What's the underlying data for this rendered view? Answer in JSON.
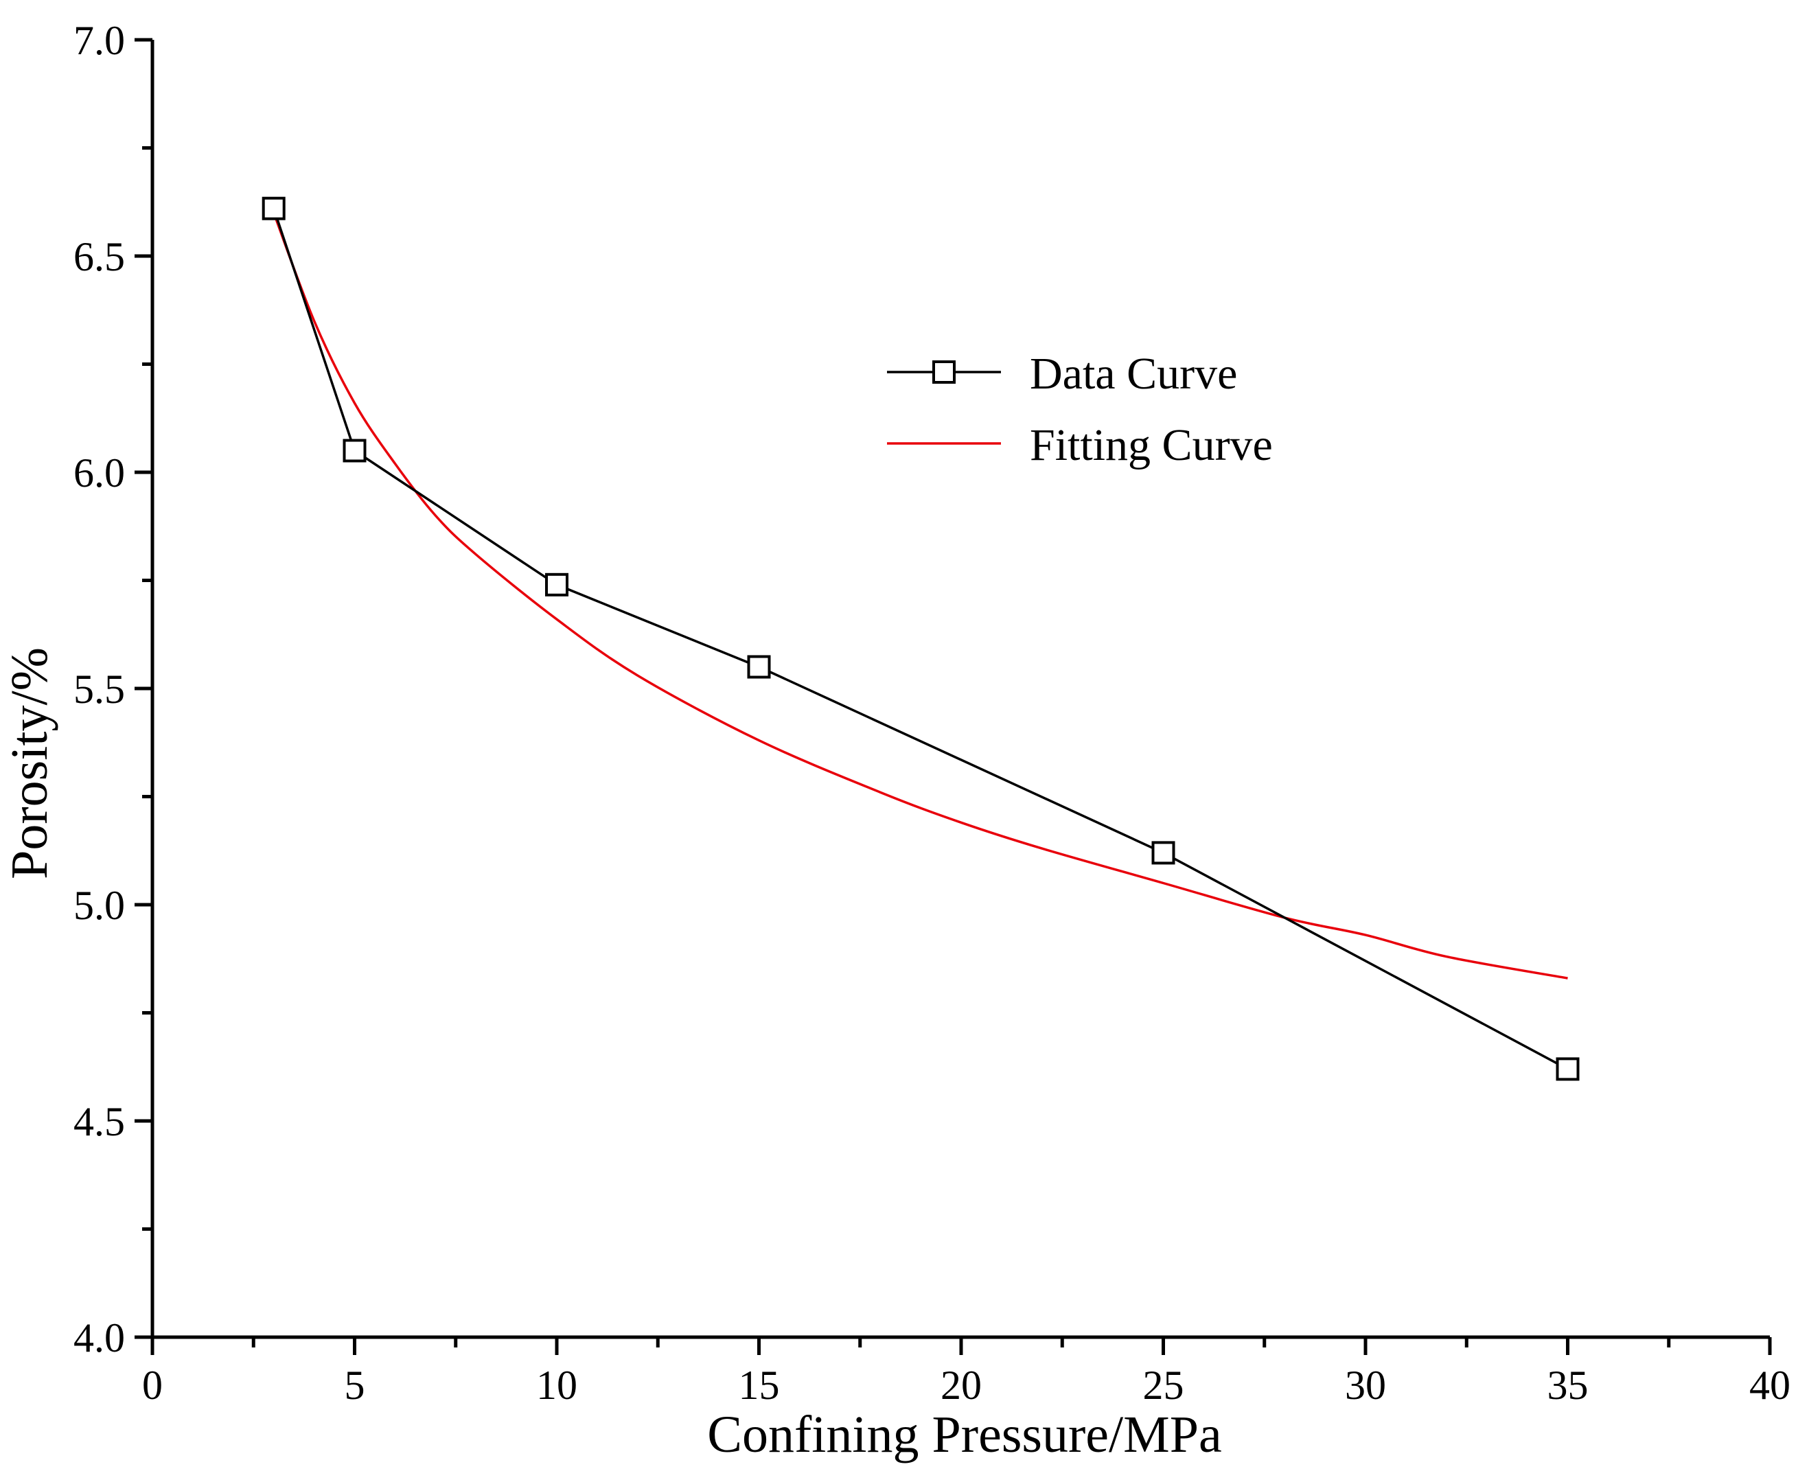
{
  "chart_data": {
    "type": "line",
    "title": "",
    "xlabel": "Confining Pressure/MPa",
    "ylabel": "Porosity/%",
    "xlim": [
      0,
      40
    ],
    "ylim": [
      4.0,
      7.0
    ],
    "xticks": [
      0,
      5,
      10,
      15,
      20,
      25,
      30,
      35,
      40
    ],
    "xtick_labels": [
      "0",
      "5",
      "10",
      "15",
      "20",
      "25",
      "30",
      "35",
      "40"
    ],
    "yticks": [
      4.0,
      4.5,
      5.0,
      5.5,
      6.0,
      6.5,
      7.0
    ],
    "ytick_labels": [
      "4.0",
      "4.5",
      "5.0",
      "5.5",
      "6.0",
      "6.5",
      "7.0"
    ],
    "grid": false,
    "legend_position": "upper-right-center",
    "series": [
      {
        "name": "Data Curve",
        "style": "line-with-square-markers",
        "color": "#000000",
        "x": [
          3,
          5,
          10,
          15,
          25,
          35
        ],
        "y": [
          6.61,
          6.05,
          5.74,
          5.55,
          5.12,
          4.62
        ]
      },
      {
        "name": "Fitting Curve",
        "style": "line",
        "color": "#e8000b",
        "x": [
          3,
          4,
          5,
          6,
          7,
          8,
          10,
          12,
          15,
          18,
          20,
          22,
          25,
          28,
          30,
          32,
          35
        ],
        "y": [
          6.6,
          6.35,
          6.16,
          6.02,
          5.9,
          5.81,
          5.66,
          5.53,
          5.38,
          5.26,
          5.19,
          5.13,
          5.05,
          4.97,
          4.93,
          4.88,
          4.83
        ]
      }
    ]
  }
}
